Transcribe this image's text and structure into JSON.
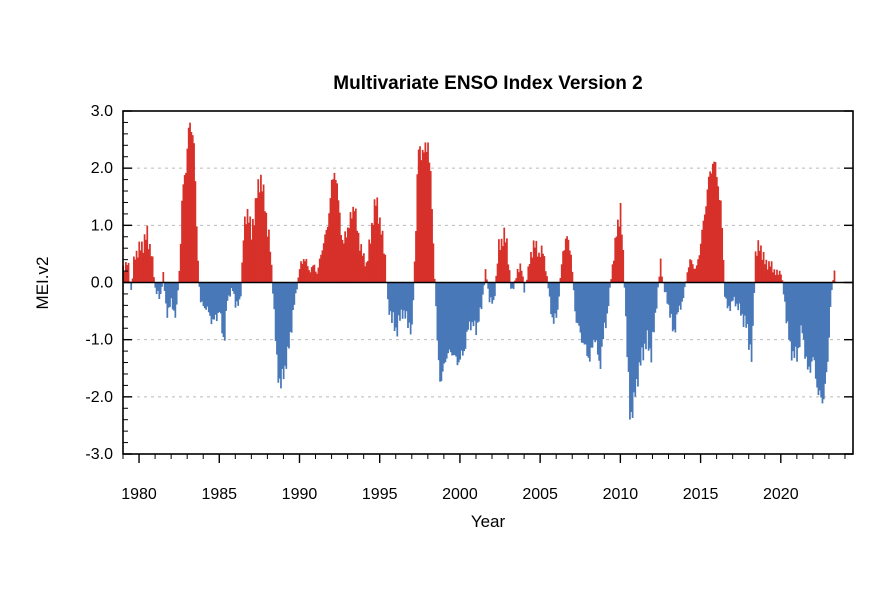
{
  "chart_data": {
    "type": "bar",
    "title": "Multivariate ENSO Index Version 2",
    "xlabel": "Year",
    "ylabel": "MEI.v2",
    "xlim": [
      1979,
      2024.5
    ],
    "ylim": [
      -3.0,
      3.0
    ],
    "x_ticks": [
      1980,
      1985,
      1990,
      1995,
      2000,
      2005,
      2010,
      2015,
      2020
    ],
    "x_tick_labels": [
      "1980",
      "1985",
      "1990",
      "1995",
      "2000",
      "2005",
      "2010",
      "2015",
      "2020"
    ],
    "y_ticks": [
      -3.0,
      -2.0,
      -1.0,
      0.0,
      1.0,
      2.0,
      3.0
    ],
    "y_tick_labels": [
      "-3.0",
      "-2.0",
      "-1.0",
      "0.0",
      "1.0",
      "2.0",
      "3.0"
    ],
    "grid": "horizontal dashed",
    "colors": {
      "positive": "#d7312a",
      "negative": "#4878b8",
      "zero_line": "#000000",
      "grid": "#bbbbbb"
    },
    "x_period": "bimonthly",
    "x_values_note_omitted": true,
    "series_anchors": [
      [
        1979.0,
        0.25
      ],
      [
        1979.3,
        0.35
      ],
      [
        1979.5,
        -0.15
      ],
      [
        1979.7,
        0.45
      ],
      [
        1979.9,
        0.55
      ],
      [
        1980.2,
        0.65
      ],
      [
        1980.5,
        0.85
      ],
      [
        1980.8,
        0.45
      ],
      [
        1981.0,
        -0.1
      ],
      [
        1981.3,
        -0.3
      ],
      [
        1981.5,
        0.15
      ],
      [
        1981.7,
        -0.55
      ],
      [
        1982.0,
        -0.35
      ],
      [
        1982.3,
        -0.6
      ],
      [
        1982.5,
        0.2
      ],
      [
        1982.7,
        1.6
      ],
      [
        1982.9,
        1.95
      ],
      [
        1983.1,
        2.75
      ],
      [
        1983.4,
        2.6
      ],
      [
        1983.6,
        0.8
      ],
      [
        1983.8,
        -0.35
      ],
      [
        1984.2,
        -0.45
      ],
      [
        1984.6,
        -0.7
      ],
      [
        1985.0,
        -0.5
      ],
      [
        1985.3,
        -1.05
      ],
      [
        1985.5,
        -0.3
      ],
      [
        1985.8,
        -0.1
      ],
      [
        1986.0,
        -0.35
      ],
      [
        1986.3,
        -0.4
      ],
      [
        1986.5,
        0.85
      ],
      [
        1986.8,
        1.3
      ],
      [
        1987.0,
        0.8
      ],
      [
        1987.3,
        1.5
      ],
      [
        1987.6,
        1.85
      ],
      [
        1987.9,
        1.2
      ],
      [
        1988.2,
        0.5
      ],
      [
        1988.4,
        -0.45
      ],
      [
        1988.6,
        -1.5
      ],
      [
        1988.8,
        -1.8
      ],
      [
        1989.0,
        -1.6
      ],
      [
        1989.3,
        -1.2
      ],
      [
        1989.6,
        -0.5
      ],
      [
        1989.8,
        -0.15
      ],
      [
        1990.0,
        0.25
      ],
      [
        1990.3,
        0.45
      ],
      [
        1990.6,
        0.2
      ],
      [
        1990.9,
        0.3
      ],
      [
        1991.1,
        0.15
      ],
      [
        1991.4,
        0.6
      ],
      [
        1991.7,
        0.9
      ],
      [
        1992.0,
        1.7
      ],
      [
        1992.2,
        2.0
      ],
      [
        1992.5,
        1.2
      ],
      [
        1992.7,
        0.6
      ],
      [
        1992.9,
        0.9
      ],
      [
        1993.1,
        1.0
      ],
      [
        1993.4,
        1.4
      ],
      [
        1993.6,
        0.9
      ],
      [
        1993.9,
        0.5
      ],
      [
        1994.2,
        0.3
      ],
      [
        1994.5,
        1.0
      ],
      [
        1994.8,
        1.5
      ],
      [
        1995.0,
        1.0
      ],
      [
        1995.3,
        0.6
      ],
      [
        1995.5,
        -0.4
      ],
      [
        1995.8,
        -0.65
      ],
      [
        1996.0,
        -0.85
      ],
      [
        1996.4,
        -0.5
      ],
      [
        1996.8,
        -0.7
      ],
      [
        1997.0,
        -0.9
      ],
      [
        1997.2,
        0.6
      ],
      [
        1997.4,
        2.35
      ],
      [
        1997.7,
        2.25
      ],
      [
        1998.0,
        2.45
      ],
      [
        1998.2,
        1.7
      ],
      [
        1998.4,
        0.2
      ],
      [
        1998.6,
        -1.15
      ],
      [
        1998.8,
        -1.8
      ],
      [
        1999.1,
        -1.3
      ],
      [
        1999.5,
        -1.2
      ],
      [
        1999.8,
        -1.4
      ],
      [
        2000.2,
        -1.25
      ],
      [
        2000.6,
        -0.7
      ],
      [
        2001.0,
        -0.8
      ],
      [
        2001.3,
        -0.5
      ],
      [
        2001.6,
        0.22
      ],
      [
        2001.8,
        -0.25
      ],
      [
        2002.1,
        -0.4
      ],
      [
        2002.4,
        0.6
      ],
      [
        2002.7,
        0.8
      ],
      [
        2002.9,
        0.75
      ],
      [
        2003.2,
        -0.2
      ],
      [
        2003.5,
        0.1
      ],
      [
        2003.8,
        0.35
      ],
      [
        2004.0,
        -0.15
      ],
      [
        2004.3,
        0.3
      ],
      [
        2004.6,
        0.7
      ],
      [
        2004.9,
        0.5
      ],
      [
        2005.2,
        0.55
      ],
      [
        2005.5,
        -0.1
      ],
      [
        2005.8,
        -0.75
      ],
      [
        2006.1,
        -0.45
      ],
      [
        2006.4,
        0.55
      ],
      [
        2006.7,
        0.8
      ],
      [
        2006.9,
        0.55
      ],
      [
        2007.2,
        -0.6
      ],
      [
        2007.5,
        -0.9
      ],
      [
        2007.8,
        -1.15
      ],
      [
        2008.1,
        -1.35
      ],
      [
        2008.4,
        -0.9
      ],
      [
        2008.7,
        -1.5
      ],
      [
        2008.9,
        -1.0
      ],
      [
        2009.2,
        -0.5
      ],
      [
        2009.5,
        0.3
      ],
      [
        2009.8,
        0.95
      ],
      [
        2010.0,
        1.3
      ],
      [
        2010.2,
        0.3
      ],
      [
        2010.4,
        -1.1
      ],
      [
        2010.6,
        -2.4
      ],
      [
        2010.8,
        -2.15
      ],
      [
        2011.1,
        -1.6
      ],
      [
        2011.4,
        -1.2
      ],
      [
        2011.7,
        -1.0
      ],
      [
        2011.9,
        -1.3
      ],
      [
        2012.2,
        -0.5
      ],
      [
        2012.5,
        0.35
      ],
      [
        2012.7,
        -0.1
      ],
      [
        2013.0,
        -0.4
      ],
      [
        2013.3,
        -0.9
      ],
      [
        2013.6,
        -0.5
      ],
      [
        2013.9,
        -0.3
      ],
      [
        2014.2,
        0.25
      ],
      [
        2014.4,
        0.4
      ],
      [
        2014.7,
        0.2
      ],
      [
        2014.9,
        0.5
      ],
      [
        2015.2,
        1.1
      ],
      [
        2015.5,
        1.8
      ],
      [
        2015.8,
        2.15
      ],
      [
        2016.0,
        1.9
      ],
      [
        2016.3,
        1.2
      ],
      [
        2016.5,
        -0.2
      ],
      [
        2016.7,
        -0.5
      ],
      [
        2017.0,
        -0.3
      ],
      [
        2017.3,
        -0.4
      ],
      [
        2017.6,
        -0.6
      ],
      [
        2017.9,
        -0.8
      ],
      [
        2018.2,
        -1.4
      ],
      [
        2018.4,
        0.5
      ],
      [
        2018.7,
        0.65
      ],
      [
        2019.0,
        0.35
      ],
      [
        2019.4,
        0.3
      ],
      [
        2019.7,
        0.15
      ],
      [
        2020.0,
        0.2
      ],
      [
        2020.3,
        -0.5
      ],
      [
        2020.6,
        -1.2
      ],
      [
        2021.0,
        -1.3
      ],
      [
        2021.3,
        -0.8
      ],
      [
        2021.7,
        -1.6
      ],
      [
        2022.0,
        -1.3
      ],
      [
        2022.3,
        -1.9
      ],
      [
        2022.6,
        -2.1
      ],
      [
        2022.9,
        -1.5
      ],
      [
        2023.1,
        -0.3
      ],
      [
        2023.35,
        0.25
      ]
    ]
  }
}
